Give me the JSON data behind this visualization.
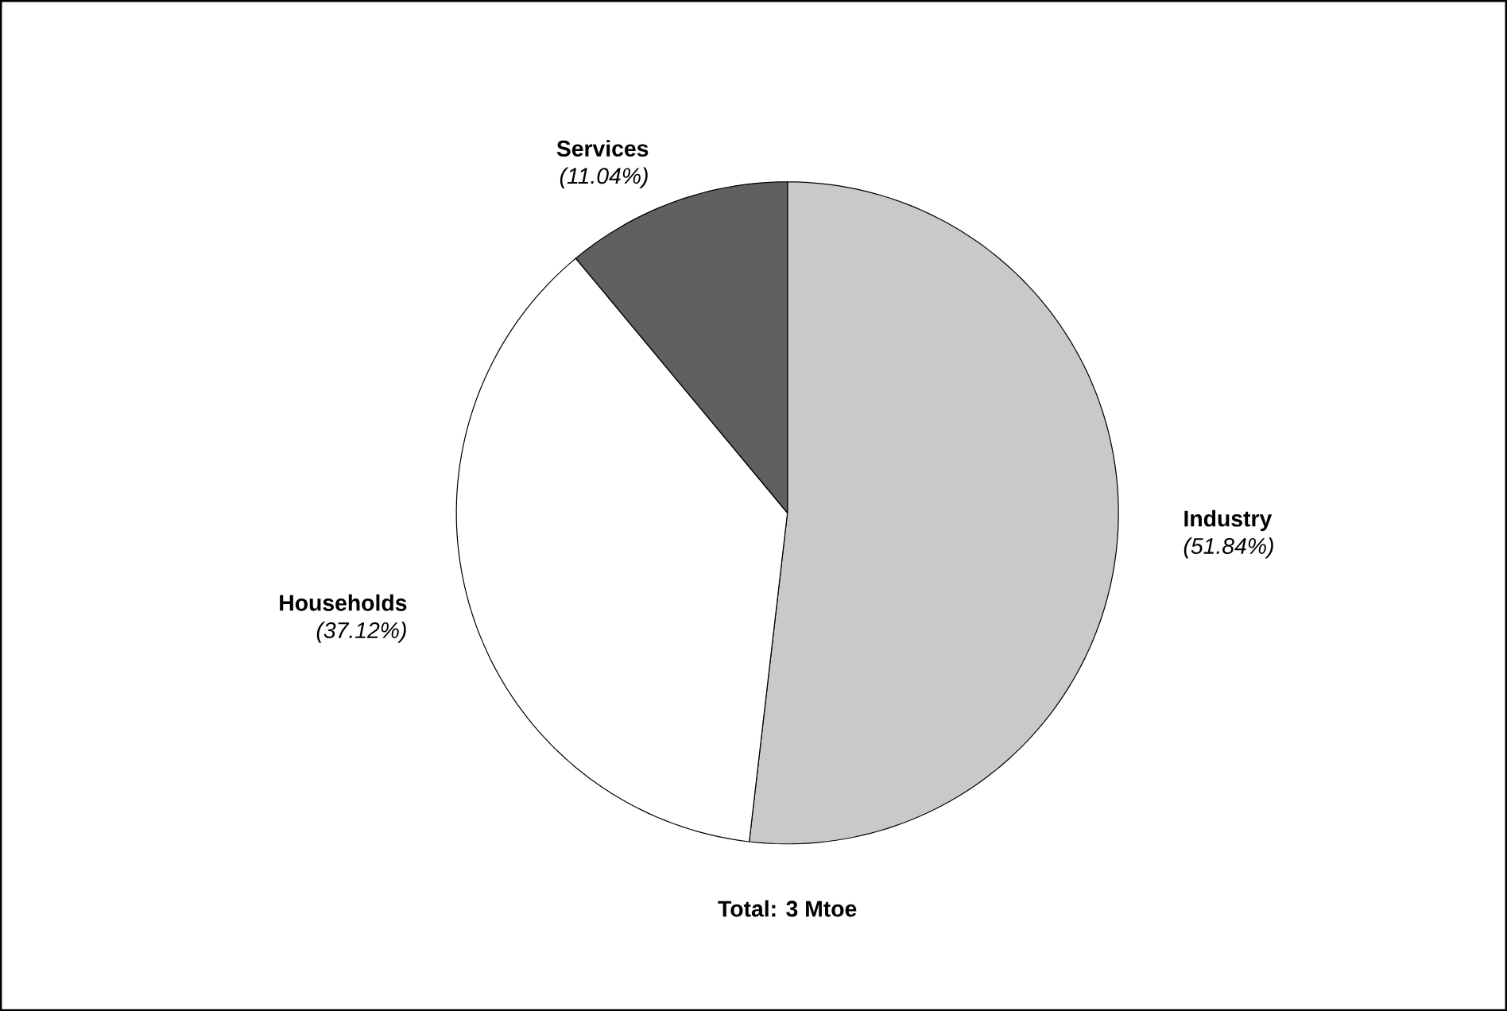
{
  "chart_data": {
    "type": "pie",
    "categories": [
      "Industry",
      "Households",
      "Services"
    ],
    "values": [
      51.84,
      37.12,
      11.04
    ],
    "colors": [
      "#c8c9cb",
      "#ffffff",
      "#5f6062"
    ],
    "value_labels": [
      "(51.84%)",
      "(37.12%)",
      "(11.04%)"
    ],
    "annotations": [
      "Total: 3 Mtoe"
    ]
  }
}
